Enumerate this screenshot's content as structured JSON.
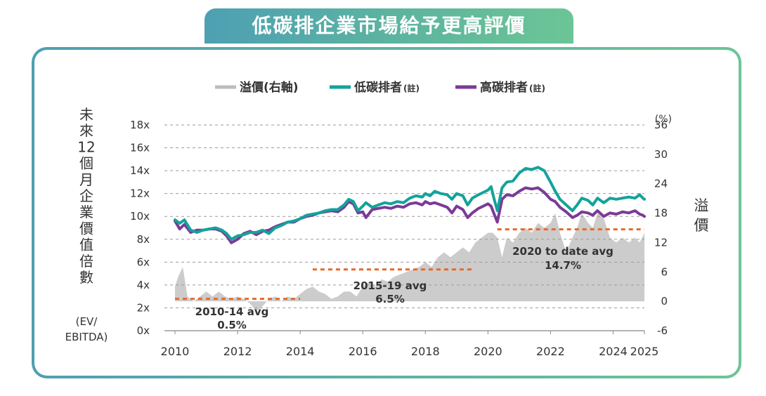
{
  "title": "低碳排企業市場給予更高評價",
  "chart_data": {
    "type": "line",
    "legend": {
      "placement": "top-center",
      "items": [
        {
          "label": "溢價(右軸)",
          "color": "#bdbdbd"
        },
        {
          "label": "低碳排者",
          "note": "(註)",
          "color": "#13a39b"
        },
        {
          "label": "高碳排者",
          "note": "(註)",
          "color": "#7b3a98"
        }
      ]
    },
    "ylabel_left": [
      "未",
      "來",
      "12",
      "個",
      "月",
      "企",
      "業",
      "價",
      "值",
      "倍",
      "數"
    ],
    "ylabel_left_unit": [
      "(EV/",
      "EBITDA)"
    ],
    "ylabel_right": [
      "溢",
      "價"
    ],
    "y_left": {
      "min": 0,
      "max": 18,
      "ticks": [
        "0x",
        "2x",
        "4x",
        "6x",
        "8x",
        "10x",
        "12x",
        "14x",
        "16x",
        "18x"
      ]
    },
    "y_right": {
      "min": -6,
      "max": 36,
      "ticks": [
        "-6",
        "0",
        "6",
        "12",
        "18",
        "24",
        "30",
        "36"
      ],
      "unit": "(%)"
    },
    "x": {
      "min": 2010,
      "max": 2025,
      "ticks": [
        "2010",
        "2012",
        "2014",
        "2016",
        "2018",
        "2020",
        "2022",
        "2024",
        "2025"
      ]
    },
    "grid": "dashed horizontal",
    "series": [
      {
        "name": "低碳排者",
        "axis": "left",
        "color": "#13a39b",
        "points": [
          [
            2010.0,
            9.7
          ],
          [
            2010.15,
            9.4
          ],
          [
            2010.3,
            9.7
          ],
          [
            2010.5,
            8.8
          ],
          [
            2010.7,
            8.6
          ],
          [
            2010.9,
            8.8
          ],
          [
            2011.1,
            8.9
          ],
          [
            2011.3,
            9.0
          ],
          [
            2011.5,
            8.8
          ],
          [
            2011.65,
            8.5
          ],
          [
            2011.8,
            8.0
          ],
          [
            2012.0,
            8.3
          ],
          [
            2012.2,
            8.4
          ],
          [
            2012.4,
            8.6
          ],
          [
            2012.6,
            8.6
          ],
          [
            2012.8,
            8.8
          ],
          [
            2013.0,
            8.5
          ],
          [
            2013.2,
            9.0
          ],
          [
            2013.4,
            9.2
          ],
          [
            2013.6,
            9.5
          ],
          [
            2013.8,
            9.6
          ],
          [
            2014.0,
            9.8
          ],
          [
            2014.2,
            10.1
          ],
          [
            2014.4,
            10.2
          ],
          [
            2014.6,
            10.3
          ],
          [
            2014.8,
            10.5
          ],
          [
            2015.0,
            10.6
          ],
          [
            2015.2,
            10.6
          ],
          [
            2015.4,
            11.0
          ],
          [
            2015.55,
            11.5
          ],
          [
            2015.7,
            11.3
          ],
          [
            2015.85,
            10.5
          ],
          [
            2016.0,
            10.9
          ],
          [
            2016.1,
            11.2
          ],
          [
            2016.3,
            10.8
          ],
          [
            2016.5,
            11.0
          ],
          [
            2016.7,
            11.2
          ],
          [
            2016.9,
            11.1
          ],
          [
            2017.1,
            11.3
          ],
          [
            2017.3,
            11.2
          ],
          [
            2017.5,
            11.6
          ],
          [
            2017.7,
            11.8
          ],
          [
            2017.9,
            11.7
          ],
          [
            2018.0,
            12.0
          ],
          [
            2018.15,
            11.8
          ],
          [
            2018.3,
            12.2
          ],
          [
            2018.5,
            12.0
          ],
          [
            2018.7,
            11.9
          ],
          [
            2018.85,
            11.5
          ],
          [
            2019.0,
            12.0
          ],
          [
            2019.2,
            11.8
          ],
          [
            2019.35,
            11.0
          ],
          [
            2019.5,
            11.6
          ],
          [
            2019.7,
            11.9
          ],
          [
            2019.85,
            12.1
          ],
          [
            2020.0,
            12.3
          ],
          [
            2020.1,
            12.6
          ],
          [
            2020.2,
            11.5
          ],
          [
            2020.3,
            10.5
          ],
          [
            2020.45,
            12.5
          ],
          [
            2020.6,
            13.0
          ],
          [
            2020.8,
            13.1
          ],
          [
            2021.0,
            13.8
          ],
          [
            2021.2,
            14.2
          ],
          [
            2021.4,
            14.1
          ],
          [
            2021.6,
            14.3
          ],
          [
            2021.8,
            14.0
          ],
          [
            2022.0,
            13.0
          ],
          [
            2022.15,
            12.2
          ],
          [
            2022.3,
            11.5
          ],
          [
            2022.5,
            11.0
          ],
          [
            2022.7,
            10.5
          ],
          [
            2022.85,
            11.0
          ],
          [
            2023.0,
            11.6
          ],
          [
            2023.2,
            11.4
          ],
          [
            2023.35,
            11.0
          ],
          [
            2023.5,
            11.6
          ],
          [
            2023.7,
            11.2
          ],
          [
            2023.9,
            11.6
          ],
          [
            2024.1,
            11.5
          ],
          [
            2024.3,
            11.6
          ],
          [
            2024.5,
            11.7
          ],
          [
            2024.7,
            11.6
          ],
          [
            2024.85,
            11.9
          ],
          [
            2024.95,
            11.6
          ],
          [
            2025.0,
            11.5
          ]
        ]
      },
      {
        "name": "高碳排者",
        "axis": "left",
        "color": "#7b3a98",
        "points": [
          [
            2010.0,
            9.6
          ],
          [
            2010.15,
            8.9
          ],
          [
            2010.3,
            9.3
          ],
          [
            2010.5,
            8.6
          ],
          [
            2010.7,
            8.8
          ],
          [
            2010.9,
            8.8
          ],
          [
            2011.1,
            8.9
          ],
          [
            2011.3,
            8.9
          ],
          [
            2011.5,
            8.7
          ],
          [
            2011.65,
            8.3
          ],
          [
            2011.8,
            7.7
          ],
          [
            2012.0,
            8.0
          ],
          [
            2012.2,
            8.5
          ],
          [
            2012.4,
            8.7
          ],
          [
            2012.6,
            8.4
          ],
          [
            2012.8,
            8.7
          ],
          [
            2013.0,
            8.8
          ],
          [
            2013.2,
            9.1
          ],
          [
            2013.4,
            9.3
          ],
          [
            2013.6,
            9.5
          ],
          [
            2013.8,
            9.5
          ],
          [
            2014.0,
            9.8
          ],
          [
            2014.2,
            10.0
          ],
          [
            2014.4,
            10.1
          ],
          [
            2014.6,
            10.3
          ],
          [
            2014.8,
            10.4
          ],
          [
            2015.0,
            10.5
          ],
          [
            2015.2,
            10.4
          ],
          [
            2015.4,
            10.8
          ],
          [
            2015.55,
            11.3
          ],
          [
            2015.7,
            11.1
          ],
          [
            2015.85,
            10.3
          ],
          [
            2016.0,
            10.4
          ],
          [
            2016.1,
            9.9
          ],
          [
            2016.3,
            10.6
          ],
          [
            2016.5,
            10.7
          ],
          [
            2016.7,
            10.8
          ],
          [
            2016.9,
            10.7
          ],
          [
            2017.1,
            10.9
          ],
          [
            2017.3,
            10.8
          ],
          [
            2017.5,
            11.1
          ],
          [
            2017.7,
            11.2
          ],
          [
            2017.9,
            11.0
          ],
          [
            2018.0,
            11.3
          ],
          [
            2018.15,
            11.1
          ],
          [
            2018.3,
            11.2
          ],
          [
            2018.5,
            11.0
          ],
          [
            2018.7,
            10.8
          ],
          [
            2018.85,
            10.3
          ],
          [
            2019.0,
            10.9
          ],
          [
            2019.2,
            10.6
          ],
          [
            2019.35,
            9.9
          ],
          [
            2019.5,
            10.3
          ],
          [
            2019.7,
            10.7
          ],
          [
            2019.85,
            10.9
          ],
          [
            2020.0,
            11.1
          ],
          [
            2020.1,
            10.9
          ],
          [
            2020.2,
            10.2
          ],
          [
            2020.3,
            9.5
          ],
          [
            2020.45,
            11.5
          ],
          [
            2020.6,
            11.9
          ],
          [
            2020.8,
            11.8
          ],
          [
            2021.0,
            12.2
          ],
          [
            2021.2,
            12.5
          ],
          [
            2021.4,
            12.4
          ],
          [
            2021.6,
            12.5
          ],
          [
            2021.8,
            12.1
          ],
          [
            2022.0,
            11.5
          ],
          [
            2022.15,
            11.3
          ],
          [
            2022.3,
            10.8
          ],
          [
            2022.5,
            10.4
          ],
          [
            2022.7,
            9.9
          ],
          [
            2022.85,
            10.1
          ],
          [
            2023.0,
            10.4
          ],
          [
            2023.2,
            10.3
          ],
          [
            2023.35,
            10.1
          ],
          [
            2023.5,
            10.5
          ],
          [
            2023.7,
            10.0
          ],
          [
            2023.9,
            10.3
          ],
          [
            2024.1,
            10.2
          ],
          [
            2024.3,
            10.4
          ],
          [
            2024.5,
            10.3
          ],
          [
            2024.7,
            10.5
          ],
          [
            2024.85,
            10.2
          ],
          [
            2024.95,
            10.1
          ],
          [
            2025.0,
            10.0
          ]
        ]
      },
      {
        "name": "溢價(右軸)",
        "axis": "right",
        "type": "area",
        "color": "#cccccc",
        "points": [
          [
            2010.0,
            3
          ],
          [
            2010.1,
            5
          ],
          [
            2010.25,
            7
          ],
          [
            2010.4,
            1
          ],
          [
            2010.6,
            0
          ],
          [
            2010.8,
            1
          ],
          [
            2011.0,
            2
          ],
          [
            2011.2,
            1
          ],
          [
            2011.4,
            2
          ],
          [
            2011.6,
            1
          ],
          [
            2011.8,
            0.5
          ],
          [
            2012.0,
            1
          ],
          [
            2012.2,
            0.5
          ],
          [
            2012.4,
            -0.5
          ],
          [
            2012.6,
            -2
          ],
          [
            2012.8,
            -1
          ],
          [
            2013.0,
            0.5
          ],
          [
            2013.2,
            1
          ],
          [
            2013.4,
            0
          ],
          [
            2013.6,
            1
          ],
          [
            2013.8,
            0.5
          ],
          [
            2014.0,
            1.5
          ],
          [
            2014.2,
            2.5
          ],
          [
            2014.4,
            3
          ],
          [
            2014.6,
            2
          ],
          [
            2014.8,
            1.5
          ],
          [
            2015.0,
            0.5
          ],
          [
            2015.2,
            1
          ],
          [
            2015.4,
            2
          ],
          [
            2015.6,
            2
          ],
          [
            2015.8,
            1
          ],
          [
            2016.0,
            3
          ],
          [
            2016.2,
            4
          ],
          [
            2016.4,
            3
          ],
          [
            2016.6,
            4.5
          ],
          [
            2016.8,
            4
          ],
          [
            2017.0,
            5
          ],
          [
            2017.2,
            5.5
          ],
          [
            2017.4,
            6
          ],
          [
            2017.6,
            6.5
          ],
          [
            2017.8,
            7
          ],
          [
            2018.0,
            8
          ],
          [
            2018.2,
            7
          ],
          [
            2018.4,
            9
          ],
          [
            2018.6,
            10
          ],
          [
            2018.8,
            9
          ],
          [
            2019.0,
            10
          ],
          [
            2019.2,
            11
          ],
          [
            2019.4,
            10
          ],
          [
            2019.6,
            12
          ],
          [
            2019.8,
            13
          ],
          [
            2020.0,
            14
          ],
          [
            2020.15,
            14
          ],
          [
            2020.3,
            13
          ],
          [
            2020.45,
            9
          ],
          [
            2020.6,
            13
          ],
          [
            2020.8,
            12
          ],
          [
            2021.0,
            14
          ],
          [
            2021.2,
            15
          ],
          [
            2021.4,
            14
          ],
          [
            2021.6,
            16
          ],
          [
            2021.8,
            15
          ],
          [
            2022.0,
            16
          ],
          [
            2022.15,
            18
          ],
          [
            2022.3,
            14
          ],
          [
            2022.5,
            10
          ],
          [
            2022.7,
            13
          ],
          [
            2022.85,
            15
          ],
          [
            2023.0,
            18
          ],
          [
            2023.2,
            16
          ],
          [
            2023.35,
            15
          ],
          [
            2023.5,
            18
          ],
          [
            2023.7,
            17
          ],
          [
            2023.9,
            13
          ],
          [
            2024.1,
            12
          ],
          [
            2024.3,
            13
          ],
          [
            2024.5,
            12
          ],
          [
            2024.7,
            13
          ],
          [
            2024.85,
            12
          ],
          [
            2025.0,
            14
          ]
        ]
      }
    ],
    "averages": [
      {
        "label": "2010-14 avg",
        "value_label": "0.5%",
        "value": 0.5,
        "x_range": [
          2010,
          2014
        ],
        "axis": "right"
      },
      {
        "label": "2015-19 avg",
        "value_label": "6.5%",
        "value": 6.5,
        "x_range": [
          2014.4,
          2019.5
        ],
        "axis": "right"
      },
      {
        "label": "2020 to date avg",
        "value_label": "14.7%",
        "value": 14.7,
        "x_range": [
          2020.3,
          2025
        ],
        "axis": "right"
      }
    ],
    "avg_color": "#e8692a"
  }
}
